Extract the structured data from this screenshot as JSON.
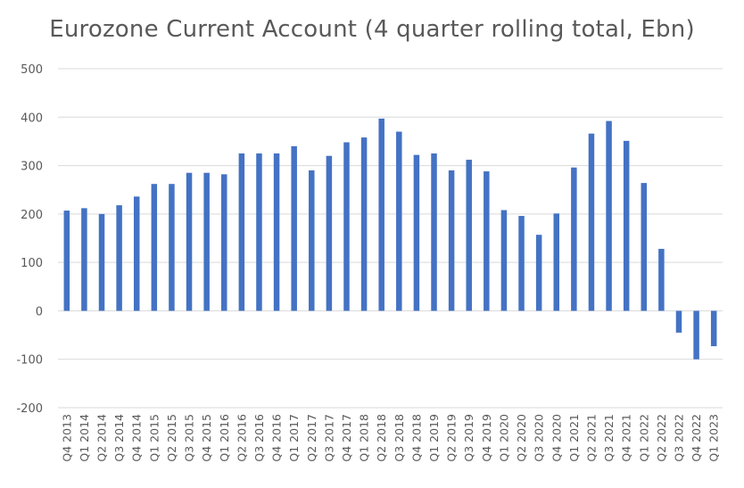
{
  "chart_data": {
    "type": "bar",
    "title": "Eurozone Current Account (4 quarter rolling total, Ebn)",
    "xlabel": "",
    "ylabel": "",
    "ylim": [
      -200,
      500
    ],
    "yticks": [
      500,
      400,
      300,
      200,
      100,
      0,
      -100,
      -200
    ],
    "grid": true,
    "bar_color": "#4472C4",
    "grid_color": "#d9d9d9",
    "categories": [
      "Q4 2013",
      "Q1 2014",
      "Q2 2014",
      "Q3 2014",
      "Q4 2014",
      "Q1 2015",
      "Q2 2015",
      "Q3 2015",
      "Q4 2015",
      "Q1 2016",
      "Q2 2016",
      "Q3 2016",
      "Q4 2016",
      "Q1 2017",
      "Q2 2017",
      "Q3 2017",
      "Q4 2017",
      "Q1 2018",
      "Q2 2018",
      "Q3 2018",
      "Q4 2018",
      "Q1 2019",
      "Q2 2019",
      "Q3 2019",
      "Q4 2019",
      "Q1 2020",
      "Q2 2020",
      "Q3 2020",
      "Q4 2020",
      "Q1 2021",
      "Q2 2021",
      "Q3 2021",
      "Q4 2021",
      "Q1 2022",
      "Q2 2022",
      "Q3 2022",
      "Q4 2022",
      "Q1 2023"
    ],
    "values": [
      207,
      212,
      200,
      218,
      236,
      262,
      262,
      285,
      285,
      282,
      325,
      325,
      325,
      340,
      290,
      320,
      348,
      358,
      397,
      370,
      322,
      325,
      290,
      312,
      288,
      208,
      196,
      157,
      201,
      296,
      366,
      392,
      351,
      264,
      128,
      -45,
      -100,
      -73
    ]
  }
}
